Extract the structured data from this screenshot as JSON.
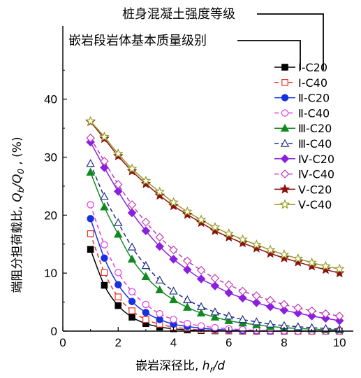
{
  "chart_data": {
    "type": "line",
    "xlabel_prefix": "嵌岩深径比, ",
    "xlabel_var": "h",
    "xlabel_sub": "r",
    "xlabel_suffix": "/d",
    "ylabel_prefix": "端阻分担荷载比, ",
    "ylabel_var": "Q",
    "ylabel_sub": "b",
    "ylabel_mid": "/Q",
    "ylabel_sub2": "0",
    "ylabel_suffix": " , (%)",
    "xlim": [
      0,
      10.5
    ],
    "ylim": [
      0,
      46
    ],
    "xticks": [
      "0",
      "2",
      "4",
      "6",
      "8",
      "10"
    ],
    "yticks": [
      "0",
      "10",
      "20",
      "30",
      "40"
    ],
    "annotations": {
      "pile_concrete": "桩身混凝土强度等级",
      "rock_quality": "嵌岩段岩体基本质量级别"
    },
    "x": [
      1.0,
      1.5,
      2.0,
      2.5,
      3.0,
      3.5,
      4.0,
      4.5,
      5.0,
      5.5,
      6.0,
      6.5,
      7.0,
      7.5,
      8.0,
      8.5,
      9.0,
      9.5,
      10.0
    ],
    "series": [
      {
        "name": "Ⅰ-C20",
        "color": "#000000",
        "marker": "square",
        "filled": true,
        "dashed": false,
        "values": [
          14.1,
          7.9,
          4.4,
          2.4,
          1.3,
          0.7,
          0.4,
          0.2,
          0.1,
          0.05,
          0.03,
          0.0,
          0.0,
          0.0,
          0.0,
          0.0,
          0.0,
          0.0,
          0.0
        ]
      },
      {
        "name": "Ⅰ-C40",
        "color": "#e8342a",
        "marker": "square",
        "filled": false,
        "dashed": true,
        "values": [
          16.8,
          10.1,
          5.9,
          3.5,
          2.0,
          1.2,
          0.7,
          0.4,
          0.2,
          0.1,
          0.05,
          0.03,
          0.0,
          0.0,
          0.0,
          0.0,
          0.0,
          0.0,
          0.0
        ]
      },
      {
        "name": "Ⅱ-C20",
        "color": "#1531e0",
        "marker": "circle",
        "filled": true,
        "dashed": false,
        "values": [
          19.4,
          12.6,
          8.0,
          5.1,
          3.2,
          2.0,
          1.2,
          0.8,
          0.5,
          0.3,
          0.2,
          0.1,
          0.05,
          0.0,
          0.0,
          0.0,
          0.0,
          0.0,
          0.0
        ]
      },
      {
        "name": "Ⅱ-C40",
        "color": "#e23be0",
        "marker": "circle",
        "filled": false,
        "dashed": true,
        "values": [
          21.8,
          14.9,
          10.1,
          6.8,
          4.6,
          3.0,
          2.0,
          1.3,
          0.9,
          0.6,
          0.4,
          0.25,
          0.15,
          0.1,
          0.05,
          0.0,
          0.0,
          0.0,
          0.0
        ]
      },
      {
        "name": "Ⅲ-C20",
        "color": "#0f8a1f",
        "marker": "triangle",
        "filled": true,
        "dashed": false,
        "values": [
          27.4,
          21.4,
          16.7,
          12.4,
          9.4,
          7.1,
          5.4,
          4.1,
          3.1,
          2.4,
          1.8,
          1.4,
          1.1,
          0.8,
          0.6,
          0.45,
          0.35,
          0.25,
          0.2
        ]
      },
      {
        "name": "Ⅲ-C40",
        "color": "#1f2f8a",
        "marker": "triangle",
        "filled": false,
        "dashed": true,
        "values": [
          28.9,
          23.2,
          18.7,
          14.5,
          11.3,
          8.8,
          6.9,
          5.4,
          4.2,
          3.3,
          2.6,
          2.0,
          1.6,
          1.2,
          0.95,
          0.75,
          0.6,
          0.45,
          0.35
        ]
      },
      {
        "name": "Ⅳ-C20",
        "color": "#8a1fe0",
        "marker": "diamond",
        "filled": true,
        "dashed": false,
        "values": [
          32.6,
          28.2,
          24.1,
          20.4,
          17.3,
          14.6,
          12.4,
          10.6,
          9.0,
          7.8,
          6.6,
          5.7,
          4.9,
          4.2,
          3.6,
          3.1,
          2.6,
          2.2,
          1.8
        ]
      },
      {
        "name": "Ⅳ-C40",
        "color": "#c33bb8",
        "marker": "diamond",
        "filled": false,
        "dashed": true,
        "values": [
          33.3,
          29.3,
          25.3,
          21.8,
          18.8,
          16.2,
          14.0,
          12.1,
          10.5,
          9.1,
          8.0,
          6.9,
          6.1,
          5.3,
          4.6,
          4.0,
          3.5,
          3.0,
          2.6
        ]
      },
      {
        "name": "Ⅴ-C20",
        "color": "#8a1010",
        "marker": "star",
        "filled": true,
        "dashed": false,
        "values": [
          36.1,
          33.2,
          30.2,
          27.6,
          25.4,
          23.4,
          21.6,
          20.1,
          18.7,
          17.3,
          16.2,
          15.2,
          14.3,
          13.4,
          12.6,
          11.9,
          11.2,
          10.6,
          10.0
        ]
      },
      {
        "name": "Ⅴ-C40",
        "color": "#9a9a2a",
        "marker": "star",
        "filled": false,
        "dashed": false,
        "values": [
          36.2,
          33.5,
          30.6,
          28.0,
          25.9,
          24.0,
          22.2,
          20.6,
          19.2,
          17.9,
          16.8,
          15.8,
          14.9,
          14.0,
          13.2,
          12.5,
          11.8,
          11.2,
          10.7
        ]
      }
    ]
  }
}
